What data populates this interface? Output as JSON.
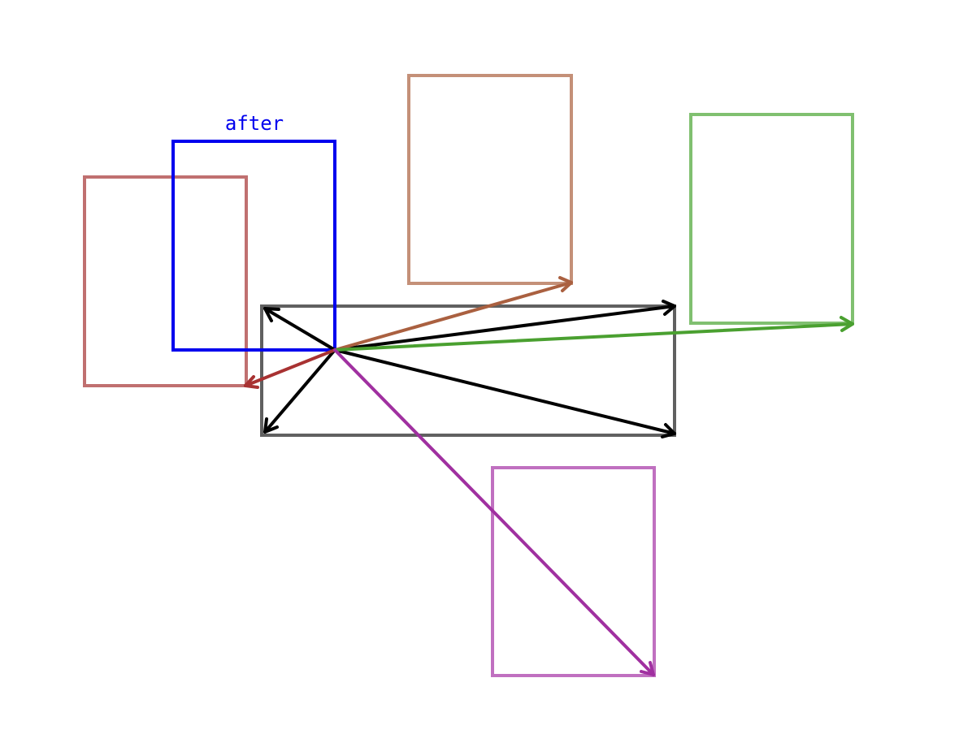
{
  "diagram": {
    "label": "after",
    "colors": {
      "after_box": "#0000ee",
      "region_box": "#606060",
      "region_arrows": "#000000",
      "box_red": "#c07070",
      "arrow_red": "#a83232",
      "box_brown": "#c49078",
      "arrow_brown": "#aa6040",
      "box_green": "#80c070",
      "arrow_green": "#4aa030",
      "box_purple": "#c070c0",
      "arrow_purple": "#a030a0"
    }
  }
}
